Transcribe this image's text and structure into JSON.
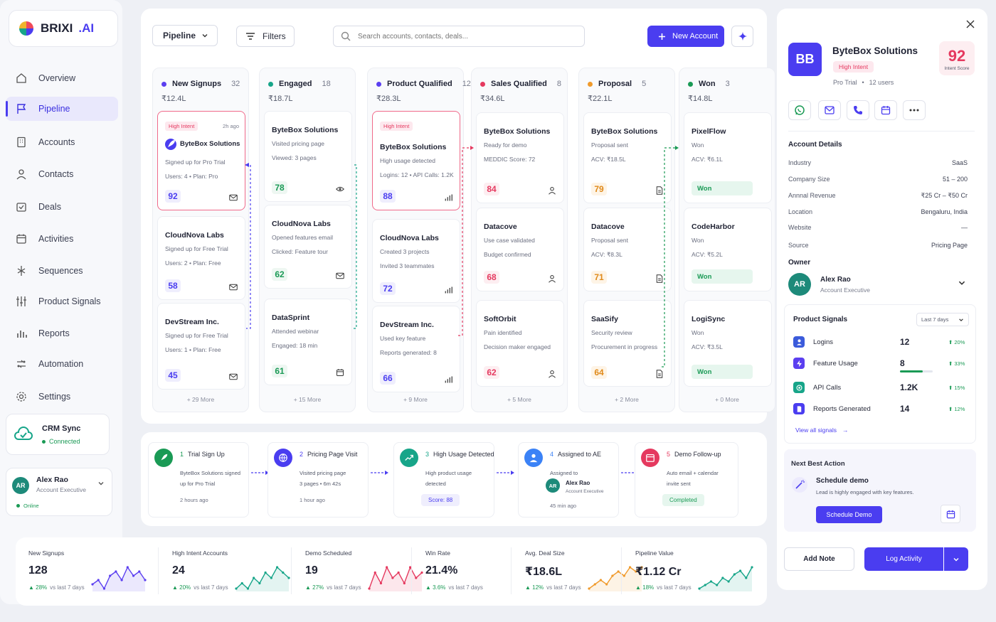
{
  "app": {
    "brand": "BRIXI",
    "brand_suffix": ".AI"
  },
  "sidebar": {
    "items": [
      {
        "label": "Overview",
        "icon": "home-icon"
      },
      {
        "label": "Pipeline",
        "icon": "flag-icon",
        "active": true
      },
      {
        "label": "Accounts",
        "icon": "building-icon"
      },
      {
        "label": "Contacts",
        "icon": "user-icon"
      },
      {
        "label": "Deals",
        "icon": "deal-icon"
      },
      {
        "label": "Activities",
        "icon": "calendar-icon"
      },
      {
        "label": "Sequences",
        "icon": "sequence-icon"
      },
      {
        "label": "Product Signals",
        "icon": "sliders-icon"
      },
      {
        "label": "Reports",
        "icon": "bar-chart-icon"
      },
      {
        "label": "Automation",
        "icon": "automation-icon"
      },
      {
        "label": "Settings",
        "icon": "gear-icon"
      }
    ],
    "crm": {
      "title": "CRM Sync",
      "status": "Connected"
    },
    "user": {
      "initials": "AR",
      "name": "Alex Rao",
      "role": "Account Executive",
      "status": "Online"
    }
  },
  "toolbar": {
    "view": "Pipeline",
    "filters": "Filters",
    "search_placeholder": "Search accounts, contacts, deals...",
    "new_account": "New Account"
  },
  "columns": [
    {
      "name": "New Signups",
      "count": "32",
      "amount": "₹12.4L",
      "color": "#5b3ff0",
      "more": "+ 29 More",
      "cards": [
        {
          "title": "ByteBox Solutions",
          "badge": "High Intent",
          "time": "2h ago",
          "lines": [
            "Signed up for Pro Trial",
            "Users: 4  •  Plan: Pro"
          ],
          "score": "92",
          "highlight": true
        },
        {
          "title": "CloudNova Labs",
          "lines": [
            "Signed up for Free Trial",
            "Users: 2  •  Plan: Free"
          ],
          "score": "58"
        },
        {
          "title": "DevStream Inc.",
          "lines": [
            "Signed up for Free Trial",
            "Users: 1  •  Plan: Free"
          ],
          "score": "45"
        }
      ]
    },
    {
      "name": "Engaged",
      "count": "18",
      "amount": "₹18.7L",
      "color": "#17a589",
      "more": "+ 15 More",
      "cards": [
        {
          "title": "ByteBox Solutions",
          "lines": [
            "Visited pricing page",
            "Viewed: 3 pages"
          ],
          "score": "78"
        },
        {
          "title": "CloudNova Labs",
          "lines": [
            "Opened features email",
            "Clicked: Feature tour"
          ],
          "score": "62"
        },
        {
          "title": "DataSprint",
          "lines": [
            "Attended webinar",
            "Engaged: 18 min"
          ],
          "score": "61"
        }
      ]
    },
    {
      "name": "Product Qualified",
      "count": "12",
      "amount": "₹28.3L",
      "color": "#5b3ff0",
      "more": "+ 9 More",
      "cards": [
        {
          "title": "ByteBox Solutions",
          "badge": "High Intent",
          "lines": [
            "High usage detected",
            "Logins: 12  •  API Calls: 1.2K"
          ],
          "score": "88",
          "highlight": true
        },
        {
          "title": "CloudNova Labs",
          "lines": [
            "Created 3 projects",
            "Invited 3 teammates"
          ],
          "score": "72"
        },
        {
          "title": "DevStream Inc.",
          "lines": [
            "Used key feature",
            "Reports generated: 8"
          ],
          "score": "66"
        }
      ]
    },
    {
      "name": "Sales Qualified",
      "count": "8",
      "amount": "₹34.6L",
      "color": "#e5395f",
      "more": "+ 5 More",
      "cards": [
        {
          "title": "ByteBox Solutions",
          "lines": [
            "Ready for demo",
            "MEDDIC Score: 72"
          ],
          "score": "84"
        },
        {
          "title": "Datacove",
          "lines": [
            "Use case validated",
            "Budget confirmed"
          ],
          "score": "68"
        },
        {
          "title": "SoftOrbit",
          "lines": [
            "Pain identified",
            "Decision maker engaged"
          ],
          "score": "62"
        }
      ]
    },
    {
      "name": "Proposal",
      "count": "5",
      "amount": "₹22.1L",
      "color": "#f09a2b",
      "more": "+ 2 More",
      "cards": [
        {
          "title": "ByteBox Solutions",
          "lines": [
            "Proposal sent",
            "ACV: ₹18.5L"
          ],
          "score": "79"
        },
        {
          "title": "Datacove",
          "lines": [
            "Proposal sent",
            "ACV: ₹8.3L"
          ],
          "score": "71"
        },
        {
          "title": "SaaSify",
          "lines": [
            "Security review",
            "Procurement in progress"
          ],
          "score": "64"
        }
      ]
    },
    {
      "name": "Won",
      "count": "3",
      "amount": "₹14.8L",
      "color": "#1a9a55",
      "more": "+ 0 More",
      "cards": [
        {
          "title": "PixelFlow",
          "lines": [
            "Won",
            "ACV: ₹6.1L"
          ],
          "won": "Won"
        },
        {
          "title": "CodeHarbor",
          "lines": [
            "Won",
            "ACV: ₹5.2L"
          ],
          "won": "Won"
        },
        {
          "title": "LogiSync",
          "lines": [
            "Won",
            "ACV: ₹3.5L"
          ],
          "won": "Won"
        }
      ]
    }
  ],
  "timeline": [
    {
      "num": "1",
      "title": "Trial Sign Up",
      "lines": [
        "ByteBox Solutions signed",
        "up for Pro Trial"
      ],
      "time": "2 hours ago",
      "color": "#1a9a55"
    },
    {
      "num": "2",
      "title": "Pricing Page Visit",
      "lines": [
        "Visited pricing page",
        "3 pages  •  6m 42s"
      ],
      "time": "1 hour ago",
      "color": "#4a3df0"
    },
    {
      "num": "3",
      "title": "High Usage Detected",
      "lines": [
        "High product usage",
        "detected"
      ],
      "chip": "Score: 88",
      "color": "#17a589"
    },
    {
      "num": "4",
      "title": "Assigned to AE",
      "lines": [
        "Assigned to"
      ],
      "ae_initials": "AR",
      "ae_name": "Alex Rao",
      "ae_role": "Account Executive",
      "time": "45 min ago",
      "color": "#3b82f6"
    },
    {
      "num": "5",
      "title": "Demo Follow-up",
      "lines": [
        "Auto email + calendar",
        "invite sent"
      ],
      "chip": "Completed",
      "color": "#e5395f"
    }
  ],
  "kpis": [
    {
      "label": "New Signups",
      "value": "128",
      "delta": "28%",
      "note": "vs last 7 days",
      "color": "#5b3ff0",
      "trend": [
        3,
        4,
        2,
        5,
        6,
        4,
        7,
        5,
        6,
        4
      ]
    },
    {
      "label": "High Intent Accounts",
      "value": "24",
      "delta": "20%",
      "note": "vs last 7 days",
      "color": "#17a589",
      "trend": [
        2,
        3,
        2,
        4,
        3,
        5,
        4,
        6,
        5,
        4
      ]
    },
    {
      "label": "Demo Scheduled",
      "value": "19",
      "delta": "27%",
      "note": "vs last 7 days",
      "color": "#e5395f",
      "trend": [
        2,
        5,
        3,
        6,
        4,
        5,
        3,
        6,
        4,
        5
      ]
    },
    {
      "label": "Win Rate",
      "value": "21.4%",
      "delta": "3.6%",
      "note": "vs last 7 days",
      "color": "#5b3ff0",
      "trend": []
    },
    {
      "label": "Avg. Deal Size",
      "value": "₹18.6L",
      "delta": "12%",
      "note": "vs last 7 days",
      "color": "#f09a2b",
      "trend": [
        2,
        3,
        4,
        3,
        5,
        6,
        5,
        7,
        6,
        7
      ]
    },
    {
      "label": "Pipeline Value",
      "value": "₹1.12 Cr",
      "delta": "18%",
      "note": "vs last 7 days",
      "color": "#17a589",
      "trend": [
        1,
        2,
        3,
        2,
        4,
        3,
        5,
        6,
        4,
        7
      ]
    }
  ],
  "account": {
    "initials": "BB",
    "name": "ByteBox Solutions",
    "badge": "High Intent",
    "plan": "Pro Trial",
    "users": "12 users",
    "intent_score": "92",
    "intent_label": "Intent Score",
    "details_title": "Account Details",
    "details": [
      {
        "k": "Industry",
        "v": "SaaS"
      },
      {
        "k": "Company Size",
        "v": "51 – 200"
      },
      {
        "k": "Annnal Revenue",
        "v": "₹25 Cr – ₹50 Cr"
      },
      {
        "k": "Location",
        "v": "Bengaluru, India"
      },
      {
        "k": "Website",
        "v": "—"
      },
      {
        "k": "Source",
        "v": "Pricing Page"
      }
    ],
    "owner_title": "Owner",
    "owner": {
      "initials": "AR",
      "name": "Alex Rao",
      "role": "Account Executive"
    },
    "signals_title": "Product Signals",
    "signals_range": "Last 7 days",
    "signals": [
      {
        "name": "Logins",
        "value": "12",
        "delta": "20%",
        "color": "#3b5bdb"
      },
      {
        "name": "Feature Usage",
        "value": "8",
        "delta": "33%",
        "color": "#5b3ff0",
        "progress": 0.7
      },
      {
        "name": "API Calls",
        "value": "1.2K",
        "delta": "15%",
        "color": "#17a589"
      },
      {
        "name": "Reports Generated",
        "value": "14",
        "delta": "12%",
        "color": "#4a3df0"
      }
    ],
    "view_all": "View all signals",
    "nba_title": "Next Best Action",
    "nba_action": "Schedule demo",
    "nba_desc": "Lead is highly engaged with key features.",
    "nba_button": "Schedule Demo",
    "add_note": "Add Note",
    "log_activity": "Log Activity"
  }
}
